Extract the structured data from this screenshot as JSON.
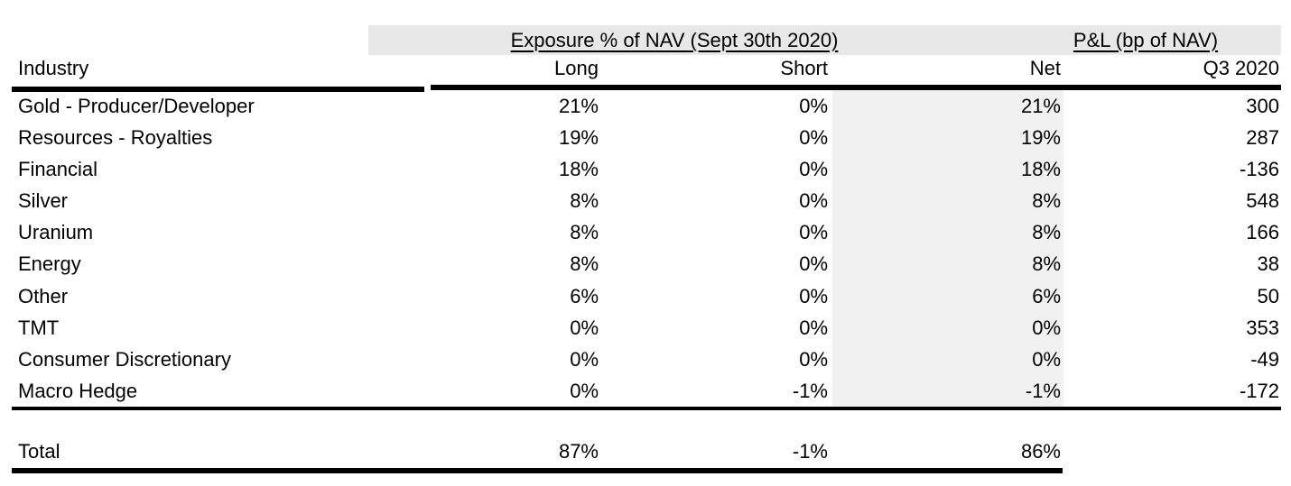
{
  "table": {
    "group_headers": [
      {
        "label": "Exposure % of NAV (Sept 30th 2020)"
      },
      {
        "label": "P&L (bp of NAV)"
      }
    ],
    "columns": [
      "Industry",
      "Long",
      "Short",
      "Net",
      "Q3 2020"
    ],
    "rows": [
      {
        "industry": "Gold - Producer/Developer",
        "long": "21%",
        "short": "0%",
        "net": "21%",
        "q3": "300"
      },
      {
        "industry": "Resources - Royalties",
        "long": "19%",
        "short": "0%",
        "net": "19%",
        "q3": "287"
      },
      {
        "industry": "Financial",
        "long": "18%",
        "short": "0%",
        "net": "18%",
        "q3": "-136"
      },
      {
        "industry": "Silver",
        "long": "8%",
        "short": "0%",
        "net": "8%",
        "q3": "548"
      },
      {
        "industry": "Uranium",
        "long": "8%",
        "short": "0%",
        "net": "8%",
        "q3": "166"
      },
      {
        "industry": "Energy",
        "long": "8%",
        "short": "0%",
        "net": "8%",
        "q3": "38"
      },
      {
        "industry": "Other",
        "long": "6%",
        "short": "0%",
        "net": "6%",
        "q3": "50"
      },
      {
        "industry": "TMT",
        "long": "0%",
        "short": "0%",
        "net": "0%",
        "q3": "353"
      },
      {
        "industry": "Consumer Discretionary",
        "long": "0%",
        "short": "0%",
        "net": "0%",
        "q3": "-49"
      },
      {
        "industry": "Macro Hedge",
        "long": "0%",
        "short": "-1%",
        "net": "-1%",
        "q3": "-172"
      }
    ],
    "total": {
      "label": "Total",
      "long": "87%",
      "short": "-1%",
      "net": "86%",
      "q3": ""
    }
  },
  "colors": {
    "header_band": "#e8e8e8",
    "net_band": "#f1f1f1",
    "rule": "#000000",
    "text": "#000000"
  }
}
